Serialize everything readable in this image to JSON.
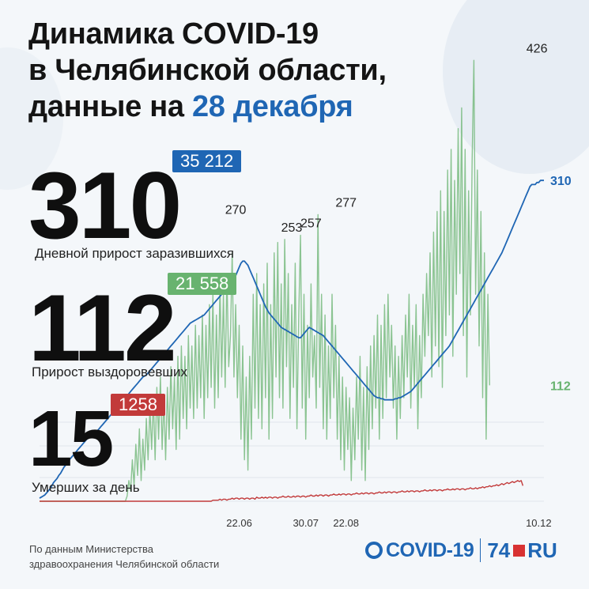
{
  "header": {
    "title_line1": "Динамика COVID-19",
    "title_line2": "в Челябинской области,",
    "title_line3_prefix": "данные на ",
    "title_line3_date": "28 декабря"
  },
  "stats": {
    "daily_cases": {
      "value": "310",
      "label": "Дневной прирост заразившихся",
      "total": "35 212",
      "color": "#1f66b4"
    },
    "recovered": {
      "value": "112",
      "label": "Прирост выздоровевших",
      "total": "21 558",
      "color": "#68b36f"
    },
    "deaths": {
      "value": "15",
      "label": "Умерших за день",
      "total": "1258",
      "color": "#c23a3a"
    }
  },
  "footer": {
    "source_line1": "По данным Министерства",
    "source_line2": "здравоохранения Челябинской области",
    "logo_covid": "COVID-19",
    "logo_74": "74",
    "logo_ru": "RU"
  },
  "chart_data": {
    "type": "line",
    "x_ticks": [
      "22.06",
      "30.07",
      "22.08",
      "10.12"
    ],
    "x_tick_index": [
      114,
      152,
      175,
      285
    ],
    "ylim": [
      0,
      440
    ],
    "annotations": [
      {
        "index": 112,
        "value": 270,
        "label": "270"
      },
      {
        "index": 144,
        "value": 253,
        "label": "253"
      },
      {
        "index": 155,
        "value": 257,
        "label": "257"
      },
      {
        "index": 175,
        "value": 277,
        "label": "277"
      },
      {
        "index": 284,
        "value": 426,
        "label": "426"
      }
    ],
    "end_labels": [
      {
        "series": "cases",
        "label": "310"
      },
      {
        "series": "recovered",
        "label": "112"
      }
    ],
    "series": [
      {
        "key": "cases",
        "color": "#1f66b4",
        "values": [
          3,
          4,
          5,
          6,
          8,
          10,
          12,
          15,
          18,
          20,
          22,
          25,
          27,
          30,
          33,
          35,
          37,
          40,
          42,
          44,
          46,
          48,
          50,
          52,
          54,
          56,
          58,
          60,
          62,
          64,
          65,
          66,
          67,
          68,
          70,
          72,
          74,
          76,
          78,
          80,
          82,
          84,
          86,
          88,
          90,
          92,
          94,
          96,
          98,
          100,
          102,
          104,
          106,
          108,
          110,
          112,
          114,
          116,
          118,
          120,
          121,
          122,
          124,
          126,
          128,
          130,
          132,
          134,
          136,
          138,
          140,
          142,
          144,
          146,
          148,
          150,
          152,
          154,
          156,
          158,
          160,
          162,
          164,
          166,
          168,
          170,
          172,
          173,
          174,
          175,
          176,
          177,
          178,
          179,
          180,
          182,
          184,
          186,
          188,
          190,
          192,
          194,
          196,
          198,
          200,
          202,
          204,
          206,
          208,
          210,
          212,
          214,
          218,
          222,
          226,
          230,
          232,
          232,
          230,
          228,
          224,
          220,
          216,
          212,
          208,
          204,
          200,
          196,
          192,
          188,
          185,
          182,
          180,
          178,
          176,
          174,
          172,
          170,
          168,
          167,
          166,
          165,
          164,
          163,
          162,
          161,
          160,
          159,
          158,
          158,
          160,
          162,
          164,
          166,
          168,
          167,
          166,
          165,
          164,
          163,
          162,
          161,
          160,
          158,
          156,
          154,
          152,
          150,
          148,
          146,
          144,
          142,
          140,
          138,
          136,
          134,
          132,
          130,
          128,
          126,
          124,
          122,
          120,
          118,
          116,
          114,
          112,
          110,
          108,
          106,
          104,
          102,
          101,
          100,
          100,
          99,
          99,
          98,
          98,
          98,
          98,
          98,
          98,
          99,
          99,
          100,
          100,
          101,
          102,
          103,
          104,
          105,
          106,
          108,
          110,
          112,
          114,
          116,
          118,
          120,
          122,
          124,
          126,
          128,
          130,
          132,
          134,
          136,
          138,
          140,
          142,
          144,
          146,
          148,
          150,
          153,
          156,
          159,
          162,
          165,
          168,
          171,
          174,
          177,
          180,
          183,
          186,
          189,
          192,
          195,
          198,
          201,
          204,
          207,
          210,
          213,
          216,
          219,
          222,
          225,
          228,
          231,
          234,
          237,
          240,
          244,
          248,
          252,
          256,
          260,
          264,
          268,
          272,
          276,
          280,
          284,
          288,
          292,
          296,
          300,
          304,
          306,
          306,
          306,
          308,
          308,
          310,
          310,
          310
        ]
      },
      {
        "key": "recovered",
        "color": "#68b36f",
        "values": [
          0,
          0,
          0,
          0,
          0,
          0,
          0,
          0,
          0,
          0,
          0,
          0,
          0,
          0,
          0,
          0,
          0,
          0,
          0,
          0,
          0,
          0,
          0,
          0,
          0,
          0,
          0,
          0,
          0,
          0,
          0,
          0,
          0,
          0,
          0,
          0,
          0,
          0,
          0,
          0,
          0,
          0,
          0,
          0,
          0,
          0,
          0,
          0,
          0,
          0,
          5,
          20,
          10,
          40,
          15,
          55,
          25,
          70,
          20,
          60,
          30,
          80,
          40,
          90,
          50,
          100,
          40,
          110,
          60,
          120,
          50,
          100,
          40,
          110,
          60,
          130,
          70,
          120,
          50,
          140,
          60,
          150,
          80,
          140,
          70,
          160,
          90,
          150,
          80,
          170,
          90,
          160,
          100,
          180,
          80,
          170,
          100,
          190,
          110,
          200,
          90,
          180,
          100,
          210,
          120,
          200,
          110,
          220,
          130,
          160,
          240,
          120,
          190,
          100,
          170,
          60,
          150,
          40,
          120,
          30,
          140,
          60,
          200,
          90,
          220,
          80,
          190,
          70,
          210,
          100,
          230,
          60,
          190,
          80,
          240,
          120,
          250,
          100,
          210,
          90,
          253,
          130,
          220,
          80,
          190,
          110,
          230,
          70,
          180,
          257,
          90,
          200,
          60,
          170,
          100,
          210,
          120,
          160,
          90,
          277,
          110,
          200,
          70,
          180,
          60,
          150,
          80,
          200,
          100,
          170,
          60,
          140,
          40,
          120,
          30,
          110,
          50,
          100,
          20,
          90,
          40,
          120,
          60,
          140,
          30,
          110,
          20,
          130,
          50,
          150,
          70,
          160,
          90,
          180,
          60,
          170,
          80,
          190,
          100,
          200,
          120,
          170,
          90,
          150,
          60,
          140,
          80,
          160,
          100,
          180,
          120,
          200,
          90,
          170,
          110,
          190,
          70,
          160,
          100,
          200,
          140,
          220,
          160,
          240,
          120,
          260,
          150,
          280,
          130,
          300,
          110,
          280,
          160,
          320,
          180,
          340,
          140,
          310,
          200,
          360,
          220,
          380,
          160,
          340,
          120,
          300,
          180,
          330,
          426,
          200,
          320,
          150,
          280,
          100,
          240,
          60,
          200,
          112
        ]
      },
      {
        "key": "deaths",
        "color": "#c23a3a",
        "values": [
          0,
          0,
          0,
          0,
          0,
          0,
          0,
          0,
          0,
          0,
          0,
          0,
          0,
          0,
          0,
          0,
          0,
          0,
          0,
          0,
          0,
          0,
          0,
          0,
          0,
          0,
          0,
          0,
          0,
          0,
          0,
          0,
          0,
          0,
          0,
          0,
          0,
          0,
          0,
          0,
          0,
          0,
          0,
          0,
          0,
          0,
          0,
          0,
          0,
          0,
          0,
          0,
          0,
          0,
          0,
          0,
          0,
          0,
          0,
          0,
          0,
          0,
          0,
          0,
          0,
          0,
          0,
          0,
          0,
          0,
          0,
          0,
          0,
          0,
          0,
          0,
          0,
          0,
          0,
          0,
          0,
          0,
          0,
          0,
          0,
          0,
          0,
          0,
          0,
          0,
          0,
          0,
          0,
          0,
          0,
          0,
          0,
          0,
          0,
          1,
          1,
          1,
          1,
          2,
          1,
          2,
          2,
          1,
          2,
          2,
          3,
          2,
          3,
          3,
          2,
          3,
          3,
          2,
          3,
          3,
          2,
          3,
          3,
          2,
          4,
          3,
          3,
          4,
          3,
          4,
          3,
          4,
          4,
          3,
          4,
          4,
          3,
          4,
          4,
          5,
          4,
          4,
          5,
          4,
          4,
          5,
          4,
          5,
          5,
          4,
          5,
          5,
          4,
          5,
          5,
          6,
          5,
          5,
          6,
          5,
          6,
          6,
          5,
          6,
          6,
          5,
          6,
          6,
          7,
          6,
          6,
          7,
          6,
          7,
          7,
          6,
          7,
          7,
          6,
          7,
          7,
          8,
          7,
          7,
          8,
          7,
          8,
          8,
          7,
          8,
          8,
          7,
          8,
          8,
          9,
          8,
          8,
          9,
          8,
          9,
          9,
          8,
          9,
          9,
          8,
          9,
          9,
          10,
          9,
          9,
          10,
          9,
          10,
          10,
          9,
          10,
          10,
          9,
          10,
          10,
          11,
          10,
          10,
          11,
          10,
          11,
          11,
          10,
          11,
          11,
          10,
          11,
          11,
          12,
          11,
          11,
          12,
          11,
          12,
          12,
          11,
          12,
          12,
          11,
          12,
          12,
          13,
          12,
          12,
          13,
          12,
          13,
          13,
          14,
          13,
          14,
          14,
          15,
          14,
          15,
          15,
          16,
          15,
          16,
          17,
          16,
          17,
          18,
          17,
          18,
          19,
          18,
          19,
          20,
          19,
          20,
          15
        ]
      }
    ]
  }
}
